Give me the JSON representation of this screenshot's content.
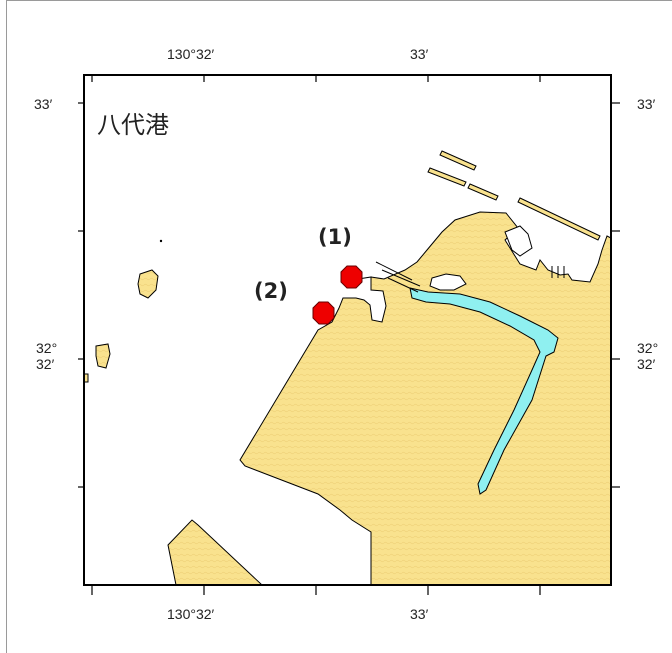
{
  "map": {
    "title": "八代港",
    "top_axis": {
      "left_label": "130°32′",
      "right_label": "33′"
    },
    "bottom_axis": {
      "left_label": "130°32′",
      "right_label": "33′"
    },
    "left_axis": {
      "top_label": "33′",
      "mid_label_deg": "32°",
      "mid_label_min": "32′"
    },
    "right_axis": {
      "top_label": "33′",
      "mid_label_deg": "32°",
      "mid_label_min": "32′"
    },
    "markers": [
      {
        "label": "(1)"
      },
      {
        "label": "(2)"
      }
    ],
    "colors": {
      "land": "#f9e28e",
      "water": "#ffffff",
      "river": "#8ff0f0",
      "marker": "#ee0000",
      "frame": "#000000"
    }
  }
}
